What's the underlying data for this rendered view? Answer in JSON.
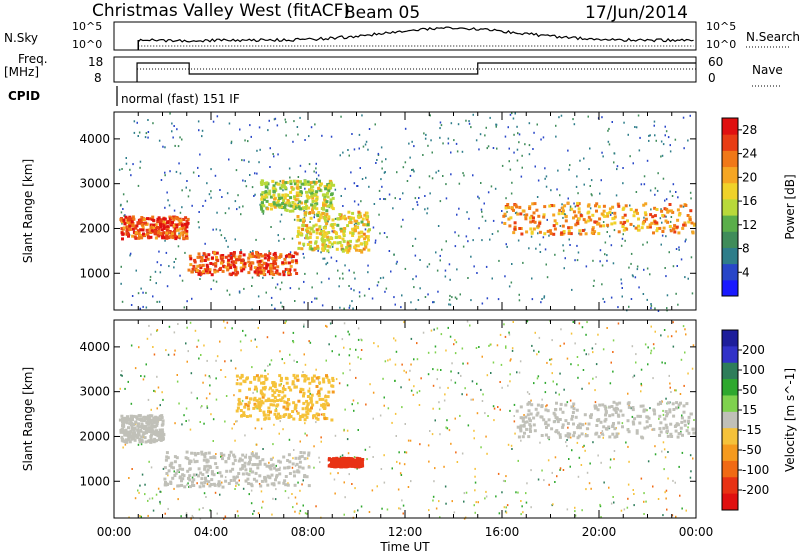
{
  "header": {
    "station": "Christmas Valley West (fitACF)",
    "beam": "Beam 05",
    "date": "17/Jun/2014"
  },
  "noise_panel": {
    "left_label": "N.Sky",
    "right_label": "N.Search",
    "left_ticks": [
      "10^5",
      "10^0"
    ],
    "right_ticks": [
      "10^5",
      "10^0"
    ]
  },
  "freq_panel": {
    "left_label_line1": "Freq.",
    "left_label_line2": "[MHz]",
    "right_label": "Nave",
    "left_ticks": [
      "18",
      "8"
    ],
    "right_ticks": [
      "60",
      "0"
    ]
  },
  "cpid": {
    "label": "CPID",
    "program": "normal (fast) 151 IF"
  },
  "colors": {
    "power_scale": [
      "#1a1aff",
      "#2846c8",
      "#2e7d8a",
      "#3f8c5a",
      "#5aae4a",
      "#b8d93a",
      "#f0d22a",
      "#f5a623",
      "#f07818",
      "#e83c14",
      "#e01010"
    ],
    "velocity_scale": [
      "#1e1e9b",
      "#3232c8",
      "#2e7d5a",
      "#2ea82e",
      "#7fd24e",
      "#c0c0b8",
      "#f5c23a",
      "#f59a1e",
      "#f06a14",
      "#e83214",
      "#e01010"
    ]
  },
  "chart_data": [
    {
      "type": "heatmap",
      "title": "Power",
      "xlabel": "Time UT",
      "ylabel": "Slant Range [km]",
      "xlim": [
        "00:00",
        "24:00"
      ],
      "ylim": [
        180,
        4600
      ],
      "x_ticks": [
        "00:00",
        "04:00",
        "08:00",
        "12:00",
        "16:00",
        "20:00",
        "00:00"
      ],
      "y_ticks": [
        1000,
        2000,
        3000,
        4000
      ],
      "colorbar": {
        "label": "Power [dB]",
        "range": [
          0,
          30
        ],
        "ticks": [
          4,
          8,
          12,
          16,
          20,
          24,
          28
        ]
      },
      "features": [
        {
          "start_h": 0.2,
          "end_h": 3.0,
          "range_km": [
            1800,
            2300
          ],
          "power_db": 26
        },
        {
          "start_h": 3.0,
          "end_h": 7.5,
          "range_km": [
            1000,
            1500
          ],
          "power_db": 26
        },
        {
          "start_h": 7.5,
          "end_h": 10.5,
          "range_km": [
            1500,
            2400
          ],
          "power_db": 18
        },
        {
          "start_h": 6.0,
          "end_h": 9.0,
          "range_km": [
            2400,
            3100
          ],
          "power_db": 16
        },
        {
          "start_h": 16.0,
          "end_h": 23.9,
          "range_km": [
            1900,
            2600
          ],
          "power_db": 22
        }
      ]
    },
    {
      "type": "heatmap",
      "title": "Velocity",
      "xlabel": "Time UT",
      "ylabel": "Slant Range [km]",
      "xlim": [
        "00:00",
        "24:00"
      ],
      "ylim": [
        180,
        4600
      ],
      "x_ticks": [
        "00:00",
        "04:00",
        "08:00",
        "12:00",
        "16:00",
        "20:00",
        "00:00"
      ],
      "y_ticks": [
        1000,
        2000,
        3000,
        4000
      ],
      "colorbar": {
        "label": "Velocity [m s^-1]",
        "range": [
          -250,
          250
        ],
        "ticks": [
          200,
          100,
          50,
          15,
          -15,
          -50,
          -100,
          -200
        ]
      },
      "features": [
        {
          "start_h": 0.2,
          "end_h": 2.0,
          "range_km": [
            1900,
            2500
          ],
          "velocity": 0
        },
        {
          "start_h": 2.0,
          "end_h": 8.0,
          "range_km": [
            900,
            1700
          ],
          "velocity": 0
        },
        {
          "start_h": 5.0,
          "end_h": 9.0,
          "range_km": [
            2400,
            3400
          ],
          "velocity": -60
        },
        {
          "start_h": 16.5,
          "end_h": 23.9,
          "range_km": [
            2000,
            2800
          ],
          "velocity": 0
        },
        {
          "start_h": 8.8,
          "end_h": 10.2,
          "range_km": [
            1350,
            1550
          ],
          "velocity": -200
        }
      ]
    }
  ]
}
